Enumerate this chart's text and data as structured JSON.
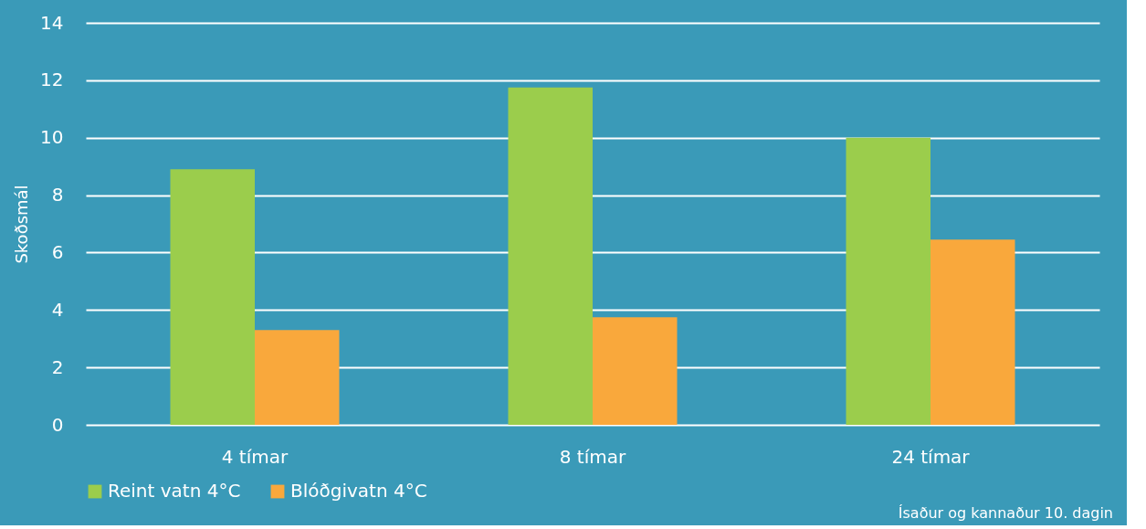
{
  "chart_data": {
    "type": "bar",
    "ylabel": "Skoðsmál",
    "categories": [
      "4 tímar",
      "8 tímar",
      "24 tímar"
    ],
    "series": [
      {
        "name": "Reint vatn 4°C",
        "color": "#9bcd4c",
        "values": [
          8.9,
          11.75,
          10
        ]
      },
      {
        "name": "Blóðgivatn 4°C",
        "color": "#f9a83c",
        "values": [
          3.3,
          3.75,
          6.45
        ]
      }
    ],
    "ylim": [
      0,
      14
    ],
    "yticks": [
      0,
      2,
      4,
      6,
      8,
      10,
      12,
      14
    ],
    "grid": "y",
    "legend": "bottom",
    "annotations": [
      "Ísaður og kannaður 10. dagin"
    ]
  }
}
